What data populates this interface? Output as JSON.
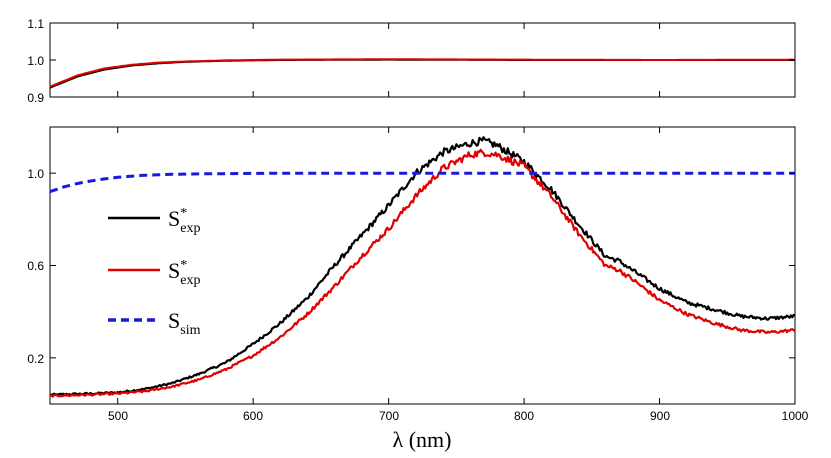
{
  "chart_data": [
    {
      "type": "line",
      "panel": "top",
      "xlim": [
        450,
        1000
      ],
      "ylim": [
        0.9,
        1.1
      ],
      "yticks": [
        "0.9",
        "1.0",
        "1.1"
      ],
      "xticks": [
        500,
        600,
        700,
        800,
        900,
        1000
      ],
      "grid": false,
      "series": [
        {
          "color": "#000000",
          "style": "solid",
          "x": [
            450,
            470,
            490,
            510,
            530,
            550,
            580,
            620,
            700,
            800,
            900,
            1000
          ],
          "y": [
            0.925,
            0.955,
            0.974,
            0.985,
            0.991,
            0.995,
            0.998,
            1.0,
            1.001,
            1.0,
            1.0,
            1.0
          ]
        },
        {
          "color": "#e00000",
          "style": "solid",
          "x": [
            450,
            470,
            490,
            510,
            530,
            550,
            580,
            620,
            700,
            800,
            900,
            1000
          ],
          "y": [
            0.928,
            0.958,
            0.977,
            0.987,
            0.993,
            0.996,
            0.999,
            1.001,
            1.002,
            1.001,
            1.0,
            1.001
          ]
        }
      ]
    },
    {
      "type": "line",
      "panel": "bottom",
      "xlabel": "λ (nm)",
      "xlim": [
        450,
        1000
      ],
      "ylim": [
        0.0,
        1.2
      ],
      "yticks": [
        "0.2",
        "0.6",
        "1.0"
      ],
      "xticks": [
        "500",
        "600",
        "700",
        "800",
        "900",
        "1000"
      ],
      "grid": false,
      "legend_position": "left",
      "legend": [
        {
          "main": "S",
          "sup": "*",
          "sub": "exp",
          "color": "#000000",
          "style": "solid"
        },
        {
          "main": "S",
          "sup": "*",
          "sub": "exp",
          "color": "#e00000",
          "style": "solid"
        },
        {
          "main": "S",
          "sup": "",
          "sub": "sim",
          "color": "#1a1adc",
          "style": "dashed"
        }
      ],
      "series": [
        {
          "color": "#000000",
          "style": "solid",
          "noisy": true,
          "x": [
            450,
            480,
            500,
            520,
            540,
            560,
            580,
            600,
            620,
            640,
            660,
            680,
            700,
            720,
            740,
            760,
            770,
            780,
            800,
            820,
            840,
            860,
            870,
            880,
            900,
            920,
            940,
            960,
            980,
            1000
          ],
          "y": [
            0.04,
            0.045,
            0.05,
            0.065,
            0.09,
            0.13,
            0.18,
            0.26,
            0.35,
            0.46,
            0.6,
            0.73,
            0.86,
            1.0,
            1.09,
            1.13,
            1.14,
            1.12,
            1.05,
            0.93,
            0.78,
            0.64,
            0.62,
            0.58,
            0.5,
            0.44,
            0.41,
            0.38,
            0.37,
            0.38
          ]
        },
        {
          "color": "#e00000",
          "style": "solid",
          "noisy": true,
          "x": [
            450,
            480,
            500,
            520,
            540,
            560,
            580,
            600,
            620,
            640,
            660,
            680,
            700,
            720,
            740,
            760,
            770,
            780,
            800,
            820,
            840,
            860,
            870,
            880,
            900,
            920,
            940,
            960,
            980,
            1000
          ],
          "y": [
            0.035,
            0.04,
            0.045,
            0.055,
            0.075,
            0.105,
            0.15,
            0.21,
            0.29,
            0.39,
            0.51,
            0.64,
            0.76,
            0.9,
            1.02,
            1.08,
            1.09,
            1.08,
            1.03,
            0.9,
            0.74,
            0.6,
            0.58,
            0.54,
            0.45,
            0.39,
            0.35,
            0.32,
            0.31,
            0.32
          ]
        },
        {
          "color": "#1a1adc",
          "style": "dashed",
          "noisy": false,
          "x": [
            450,
            460,
            470,
            480,
            490,
            500,
            510,
            520,
            540,
            560,
            580,
            600,
            650,
            700,
            800,
            900,
            1000
          ],
          "y": [
            0.92,
            0.94,
            0.955,
            0.966,
            0.975,
            0.982,
            0.987,
            0.991,
            0.995,
            0.997,
            0.998,
            0.999,
            1.0,
            1.0,
            1.0,
            1.0,
            1.0
          ]
        }
      ]
    }
  ]
}
